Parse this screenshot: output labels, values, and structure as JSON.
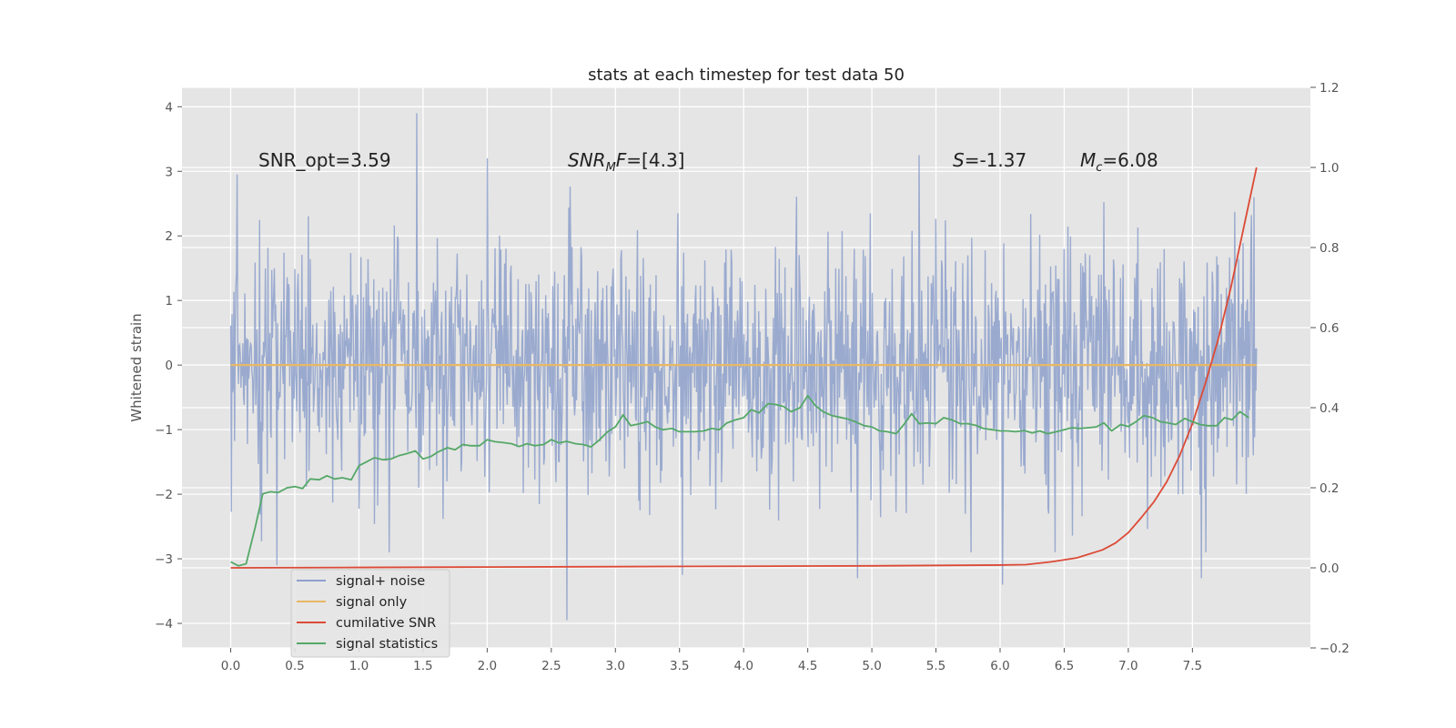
{
  "chart_data": {
    "type": "line",
    "title": "stats at each timestep for test data 50",
    "ylabel": "Whitened strain",
    "xlim": [
      -0.38,
      8.42
    ],
    "ylim": [
      -4.38,
      4.3
    ],
    "y2lim": [
      -0.2,
      1.2
    ],
    "xticks": [
      0.0,
      0.5,
      1.0,
      1.5,
      2.0,
      2.5,
      3.0,
      3.5,
      4.0,
      4.5,
      5.0,
      5.5,
      6.0,
      6.5,
      7.0,
      7.5
    ],
    "yticks": [
      -4,
      -3,
      -2,
      -1,
      0,
      1,
      2,
      3,
      4
    ],
    "y2ticks": [
      -0.2,
      0.0,
      0.2,
      0.4,
      0.6,
      0.8,
      1.0,
      1.2
    ],
    "xtick_labels": [
      "0.0",
      "0.5",
      "1.0",
      "1.5",
      "2.0",
      "2.5",
      "3.0",
      "3.5",
      "4.0",
      "4.5",
      "5.0",
      "5.5",
      "6.0",
      "6.5",
      "7.0",
      "7.5"
    ],
    "ytick_labels": [
      "−4",
      "−3",
      "−2",
      "−1",
      "0",
      "1",
      "2",
      "3",
      "4"
    ],
    "y2tick_labels": [
      "−0.2",
      "0.0",
      "0.2",
      "0.4",
      "0.6",
      "0.8",
      "1.0",
      "1.2"
    ],
    "grid": true,
    "legend_position": "lower-left",
    "annotations": {
      "snr_opt": "SNR_opt=3.59",
      "snr_mf_main": "SNR",
      "snr_mf_sub": "M",
      "snr_mf_main2": "F",
      "snr_mf_rest": "=[4.3]",
      "s_symbol": "S",
      "s_value": "=-1.37",
      "mc_symbol": "M",
      "mc_sub": "c",
      "mc_value": "=6.08"
    },
    "series": [
      {
        "name": "signal+ noise",
        "color": "#8da0cb",
        "axis": "left",
        "kind": "noise",
        "x_range": [
          0.0,
          8.0
        ],
        "approx_std": 0.95,
        "approx_extremes": [
          [
            1.45,
            3.9
          ],
          [
            2.62,
            -3.95
          ],
          [
            0.36,
            -3.1
          ],
          [
            3.52,
            -3.25
          ],
          [
            4.89,
            -3.3
          ],
          [
            6.02,
            -3.4
          ],
          [
            7.57,
            -3.3
          ],
          [
            5.37,
            3.25
          ],
          [
            2.0,
            3.2
          ],
          [
            7.98,
            2.6
          ],
          [
            0.05,
            2.95
          ]
        ]
      },
      {
        "name": "signal only",
        "color": "#e8b865",
        "axis": "left",
        "x": [
          0.0,
          8.0
        ],
        "y": [
          0.0,
          0.0
        ]
      },
      {
        "name": "cumilative SNR",
        "color": "#dc4a36",
        "axis": "right",
        "x": [
          0.0,
          1.0,
          2.0,
          3.0,
          4.0,
          5.0,
          6.0,
          6.2,
          6.4,
          6.6,
          6.8,
          6.9,
          7.0,
          7.1,
          7.2,
          7.3,
          7.4,
          7.5,
          7.6,
          7.7,
          7.8,
          7.9,
          8.0
        ],
        "y": [
          0.0,
          0.001,
          0.002,
          0.003,
          0.004,
          0.005,
          0.007,
          0.008,
          0.015,
          0.025,
          0.045,
          0.062,
          0.088,
          0.125,
          0.165,
          0.215,
          0.28,
          0.36,
          0.46,
          0.57,
          0.7,
          0.85,
          1.0
        ]
      },
      {
        "name": "signal statistics",
        "color": "#55a868",
        "axis": "right",
        "x": [
          0.0,
          0.06,
          0.12,
          0.19,
          0.25,
          0.31,
          0.37,
          0.44,
          0.5,
          0.56,
          0.62,
          0.69,
          0.75,
          0.81,
          0.87,
          0.94,
          1.0,
          1.06,
          1.12,
          1.19,
          1.25,
          1.31,
          1.37,
          1.44,
          1.5,
          1.56,
          1.62,
          1.69,
          1.75,
          1.81,
          1.87,
          1.94,
          2.0,
          2.06,
          2.12,
          2.19,
          2.25,
          2.31,
          2.37,
          2.44,
          2.5,
          2.56,
          2.62,
          2.69,
          2.75,
          2.81,
          2.87,
          2.94,
          3.0,
          3.06,
          3.12,
          3.19,
          3.25,
          3.31,
          3.37,
          3.44,
          3.5,
          3.56,
          3.62,
          3.69,
          3.75,
          3.81,
          3.87,
          3.94,
          4.0,
          4.06,
          4.12,
          4.19,
          4.25,
          4.31,
          4.37,
          4.44,
          4.5,
          4.56,
          4.62,
          4.69,
          4.75,
          4.81,
          4.87,
          4.94,
          5.0,
          5.06,
          5.12,
          5.19,
          5.25,
          5.31,
          5.37,
          5.44,
          5.5,
          5.56,
          5.62,
          5.69,
          5.75,
          5.81,
          5.87,
          5.94,
          6.0,
          6.06,
          6.12,
          6.19,
          6.25,
          6.31,
          6.37,
          6.44,
          6.5,
          6.56,
          6.62,
          6.69,
          6.75,
          6.81,
          6.87,
          6.94,
          7.0,
          7.06,
          7.12,
          7.19,
          7.25,
          7.31,
          7.37,
          7.44,
          7.5,
          7.56,
          7.62,
          7.69,
          7.75,
          7.81,
          7.87,
          7.94
        ],
        "y": [
          0.015,
          0.005,
          0.01,
          0.1,
          0.185,
          0.19,
          0.188,
          0.2,
          0.203,
          0.198,
          0.222,
          0.22,
          0.23,
          0.222,
          0.225,
          0.22,
          0.255,
          0.265,
          0.275,
          0.27,
          0.272,
          0.28,
          0.285,
          0.292,
          0.272,
          0.278,
          0.29,
          0.3,
          0.295,
          0.308,
          0.305,
          0.305,
          0.32,
          0.315,
          0.313,
          0.31,
          0.303,
          0.31,
          0.305,
          0.308,
          0.32,
          0.312,
          0.316,
          0.31,
          0.308,
          0.302,
          0.318,
          0.34,
          0.352,
          0.382,
          0.355,
          0.36,
          0.365,
          0.352,
          0.345,
          0.348,
          0.34,
          0.34,
          0.34,
          0.342,
          0.348,
          0.345,
          0.362,
          0.37,
          0.375,
          0.395,
          0.387,
          0.41,
          0.408,
          0.403,
          0.39,
          0.4,
          0.43,
          0.405,
          0.39,
          0.38,
          0.376,
          0.372,
          0.365,
          0.355,
          0.352,
          0.342,
          0.34,
          0.335,
          0.358,
          0.385,
          0.36,
          0.362,
          0.36,
          0.375,
          0.37,
          0.36,
          0.36,
          0.356,
          0.348,
          0.345,
          0.342,
          0.342,
          0.34,
          0.343,
          0.337,
          0.342,
          0.335,
          0.34,
          0.345,
          0.35,
          0.348,
          0.35,
          0.352,
          0.362,
          0.342,
          0.358,
          0.353,
          0.365,
          0.38,
          0.375,
          0.365,
          0.362,
          0.358,
          0.373,
          0.365,
          0.358,
          0.355,
          0.355,
          0.375,
          0.37,
          0.39,
          0.375
        ]
      }
    ]
  },
  "colors": {
    "plot_bg": "#e5e5e5",
    "grid": "#ffffff",
    "legend_bg": "#e5e5e5",
    "legend_border": "#cccccc"
  }
}
